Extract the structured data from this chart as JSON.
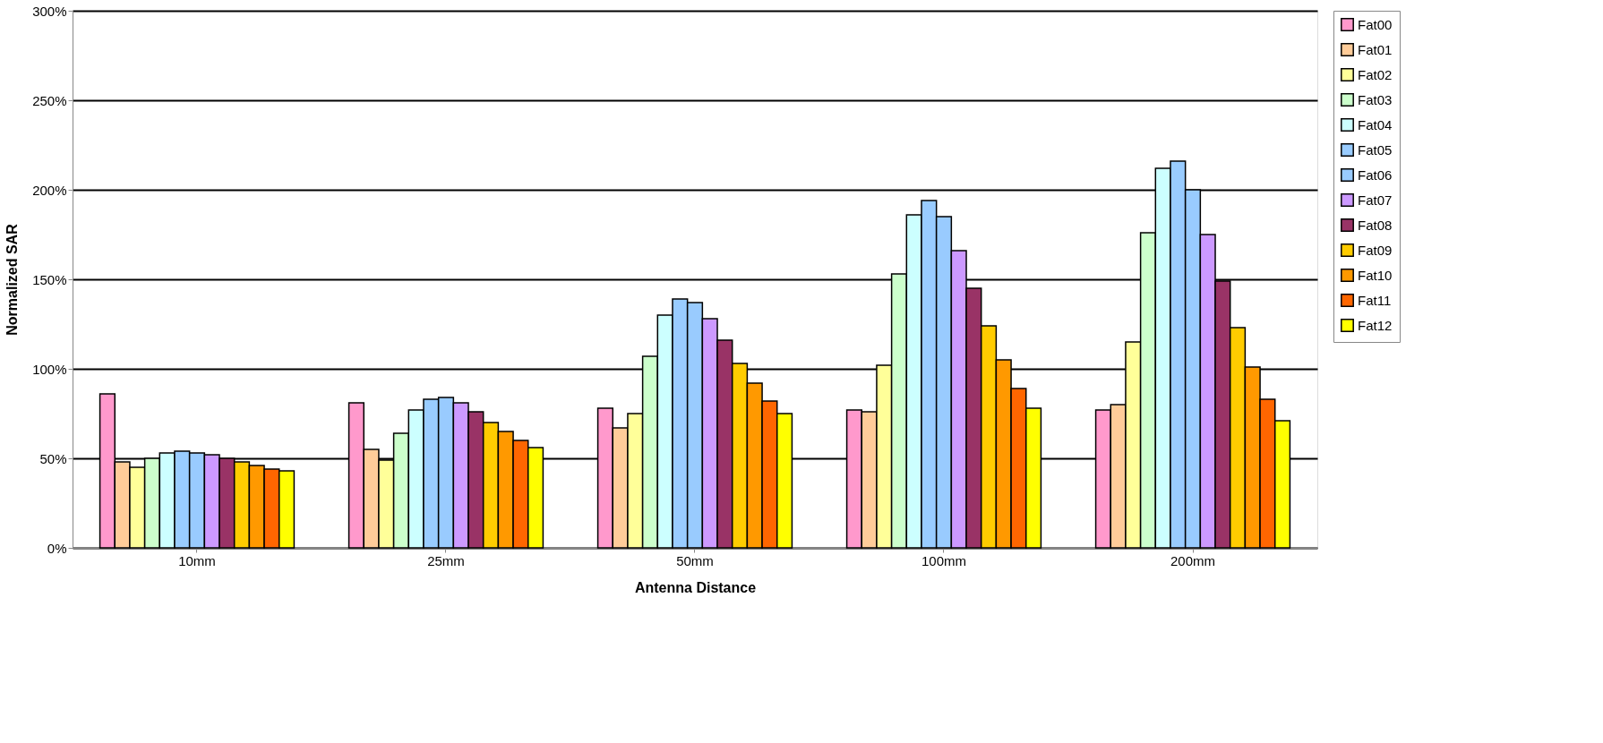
{
  "chart_data": {
    "type": "bar",
    "xlabel": "Antenna Distance",
    "ylabel": "Normalized SAR",
    "categories": [
      "10mm",
      "25mm",
      "50mm",
      "100mm",
      "200mm"
    ],
    "series": [
      {
        "name": "Fat00",
        "color": "#ff99cc",
        "values": [
          86,
          81,
          78,
          77,
          77
        ]
      },
      {
        "name": "Fat01",
        "color": "#ffcc99",
        "values": [
          48,
          55,
          67,
          76,
          80
        ]
      },
      {
        "name": "Fat02",
        "color": "#ffff99",
        "values": [
          45,
          49,
          75,
          102,
          115
        ]
      },
      {
        "name": "Fat03",
        "color": "#ccffcc",
        "values": [
          50,
          64,
          107,
          153,
          176
        ]
      },
      {
        "name": "Fat04",
        "color": "#ccffff",
        "values": [
          53,
          77,
          130,
          186,
          212
        ]
      },
      {
        "name": "Fat05",
        "color": "#99ccff",
        "values": [
          54,
          83,
          139,
          194,
          216
        ]
      },
      {
        "name": "Fat06",
        "color": "#99cbfe",
        "values": [
          53,
          84,
          137,
          185,
          200
        ]
      },
      {
        "name": "Fat07",
        "color": "#cc99ff",
        "values": [
          52,
          81,
          128,
          166,
          175
        ]
      },
      {
        "name": "Fat08",
        "color": "#993366",
        "values": [
          50,
          76,
          116,
          145,
          149
        ]
      },
      {
        "name": "Fat09",
        "color": "#ffcc00",
        "values": [
          48,
          70,
          103,
          124,
          123
        ]
      },
      {
        "name": "Fat10",
        "color": "#ff9900",
        "values": [
          46,
          65,
          92,
          105,
          101
        ]
      },
      {
        "name": "Fat11",
        "color": "#ff6600",
        "values": [
          44,
          60,
          82,
          89,
          83
        ]
      },
      {
        "name": "Fat12",
        "color": "#ffff00",
        "values": [
          43,
          56,
          75,
          78,
          71
        ]
      }
    ],
    "ylim": [
      0,
      300
    ],
    "yticks": [
      {
        "value": 0,
        "label": "0%"
      },
      {
        "value": 50,
        "label": "50%"
      },
      {
        "value": 100,
        "label": "100%"
      },
      {
        "value": 150,
        "label": "150%"
      },
      {
        "value": 200,
        "label": "200%"
      },
      {
        "value": 250,
        "label": "250%"
      },
      {
        "value": 300,
        "label": "300%"
      }
    ],
    "grid": "y",
    "legend": "right"
  }
}
